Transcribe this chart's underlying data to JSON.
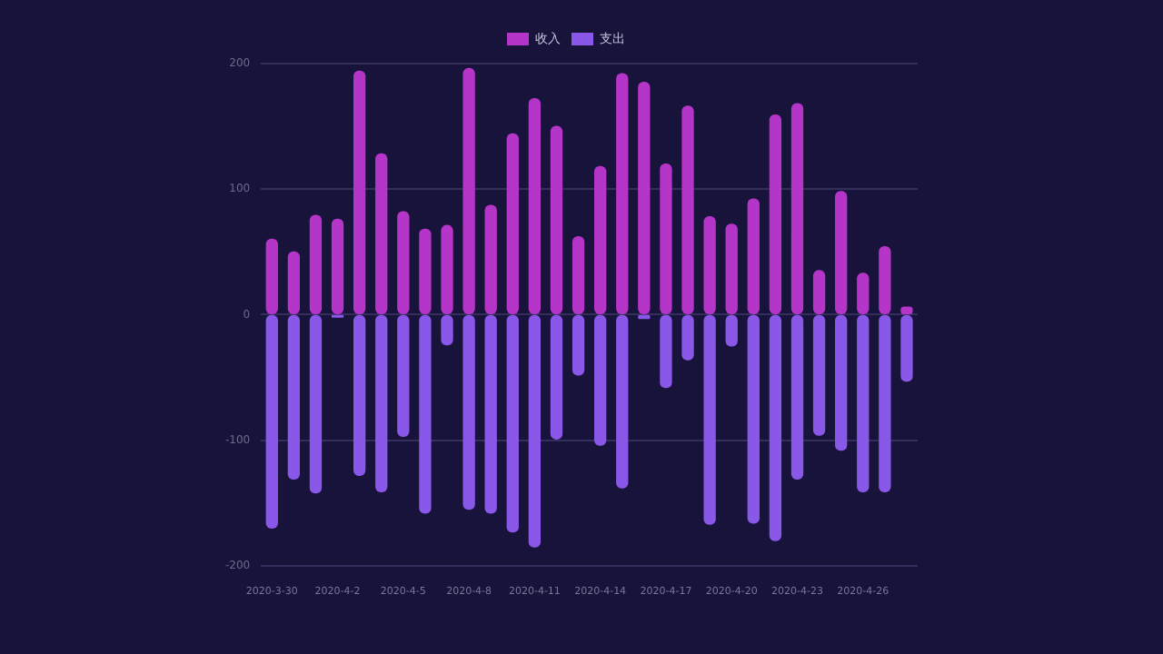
{
  "chart_data": {
    "type": "bar",
    "stacked": true,
    "categories": [
      "2020-3-30",
      null,
      null,
      "2020-4-2",
      null,
      null,
      "2020-4-5",
      null,
      null,
      "2020-4-8",
      null,
      null,
      "2020-4-11",
      null,
      null,
      "2020-4-14",
      null,
      null,
      "2020-4-17",
      null,
      null,
      "2020-4-20",
      null,
      null,
      "2020-4-23",
      null,
      null,
      "2020-4-26",
      null,
      null
    ],
    "series": [
      {
        "name": "收入",
        "color": "#b535c8",
        "values": [
          60,
          50,
          79,
          76,
          194,
          128,
          82,
          68,
          71,
          196,
          87,
          144,
          172,
          150,
          62,
          118,
          192,
          185,
          120,
          166,
          78,
          72,
          92,
          159,
          168,
          35,
          98,
          33,
          54,
          6
        ]
      },
      {
        "name": "支出",
        "color": "#8a58e8",
        "values": [
          -170,
          -131,
          -142,
          -2,
          -128,
          -141,
          -97,
          -158,
          -24,
          -155,
          -158,
          -173,
          -185,
          -99,
          -48,
          -104,
          -138,
          -3,
          -58,
          -36,
          -167,
          -25,
          -166,
          -180,
          -131,
          -96,
          -108,
          -141,
          -141,
          -53
        ]
      }
    ],
    "ylim": [
      -200,
      200
    ],
    "yticks": [
      200,
      100,
      0,
      -100,
      -200
    ],
    "grid": "y",
    "legend": "top"
  }
}
